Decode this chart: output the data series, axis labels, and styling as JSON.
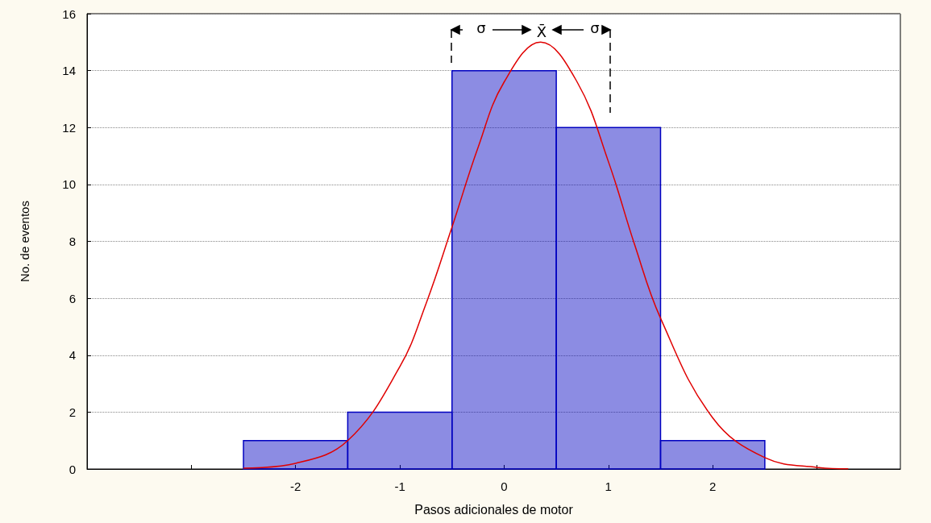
{
  "chart_data": {
    "type": "histogram",
    "xlabel": "Pasos adicionales de motor",
    "ylabel": "No. de eventos",
    "bins": [
      -2.5,
      -1.5,
      -0.5,
      0.5,
      1.5,
      2.5
    ],
    "values": [
      1,
      2,
      14,
      12,
      1
    ],
    "color": "#0000c0",
    "series": [
      {
        "type": "line",
        "color": "#e00000",
        "x": [
          -2.5,
          -2,
          -1.5,
          -1,
          -0.75,
          -0.5,
          -0.25,
          0,
          0.35,
          0.7,
          1,
          1.25,
          1.5,
          2,
          2.5,
          3,
          3.3
        ],
        "values": [
          0.03,
          0.2,
          1.0,
          3.6,
          5.8,
          8.5,
          11.3,
          13.6,
          15.0,
          13.6,
          10.8,
          7.9,
          5.3,
          1.8,
          0.4,
          0.06,
          0.01
        ]
      }
    ],
    "xlim": [
      -4,
      3.8
    ],
    "xticks": [
      {
        "value": -3,
        "label": null
      },
      -2,
      -1,
      0,
      1,
      2,
      {
        "value": 3,
        "label": null
      }
    ],
    "ylim": [
      0,
      16
    ],
    "yticks": [
      0,
      2,
      4,
      6,
      8,
      10,
      12,
      14,
      16
    ],
    "grid": "y",
    "marker": "none",
    "line_style": "solid",
    "annotations": [
      "σ",
      "X̄",
      "σ"
    ]
  }
}
